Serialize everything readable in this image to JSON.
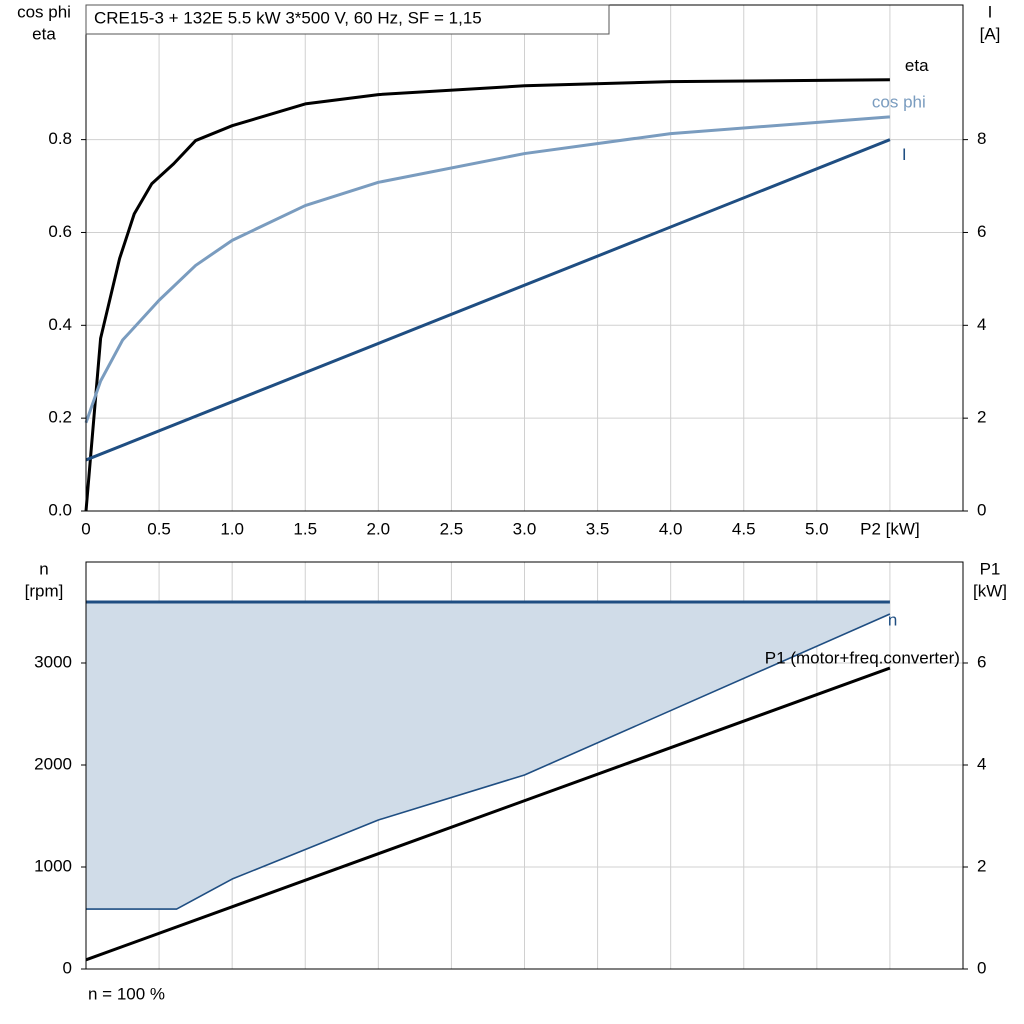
{
  "chart_data": [
    {
      "type": "line",
      "title": "CRE15-3 + 132E   5.5 kW   3*500 V, 60 Hz, SF = 1,15",
      "ylabel": [
        "cos phi",
        "eta"
      ],
      "y2label": [
        "I",
        "[A]"
      ],
      "xlim": [
        0,
        6.0
      ],
      "xticks": [
        {
          "value": 0,
          "label": "0"
        },
        0.5,
        {
          "value": 1,
          "label": "1.0"
        },
        1.5,
        {
          "value": 2,
          "label": "2.0"
        },
        2.5,
        {
          "value": 3,
          "label": "3.0"
        },
        3.5,
        {
          "value": 4,
          "label": "4.0"
        },
        4.5,
        {
          "value": 5,
          "label": "5.0"
        },
        {
          "value": 5.5,
          "label": "P2 [kW]"
        }
      ],
      "ylim": [
        0,
        1.09
      ],
      "yticks": [
        {
          "value": 0,
          "label": "0.0"
        },
        0.2,
        0.4,
        0.6,
        0.8
      ],
      "y2lim": [
        0,
        10.9
      ],
      "y2ticks": [
        0,
        2,
        4,
        6,
        8
      ],
      "grid": true,
      "series": [
        {
          "name": "eta",
          "color": "#000000",
          "x": [
            0,
            0.1,
            0.23,
            0.33,
            0.45,
            0.6,
            0.75,
            1.0,
            1.5,
            2.0,
            3.0,
            4.0,
            5.5
          ],
          "values": [
            0,
            0.372,
            0.544,
            0.64,
            0.705,
            0.748,
            0.798,
            0.83,
            0.877,
            0.897,
            0.916,
            0.925,
            0.929
          ]
        },
        {
          "name": "cos phi",
          "color": "#7a9cbf",
          "x": [
            0,
            0.1,
            0.25,
            0.5,
            0.75,
            1.0,
            1.5,
            2.0,
            3.0,
            4.0,
            5.5
          ],
          "values": [
            0.19,
            0.28,
            0.368,
            0.454,
            0.529,
            0.583,
            0.658,
            0.708,
            0.77,
            0.813,
            0.849
          ]
        },
        {
          "name": "I",
          "color": "#1f4e82",
          "axis": "y2",
          "x": [
            0,
            5.5
          ],
          "values": [
            1.1,
            8.0
          ]
        }
      ]
    },
    {
      "type": "area",
      "ylabel": [
        "n",
        "[rpm]"
      ],
      "y2label": [
        "P1",
        "[kW]"
      ],
      "annotation": "n = 100 %",
      "xlim": [
        0,
        6.0
      ],
      "xgrid": [
        0.5,
        1.0,
        1.5,
        2.0,
        2.5,
        3.0,
        3.5,
        4.0,
        4.5,
        5.0,
        5.5
      ],
      "ylim": [
        0,
        3990
      ],
      "yticks": [
        0,
        1000,
        2000,
        3000
      ],
      "y2lim": [
        0,
        7.98
      ],
      "y2ticks": [
        0,
        2,
        4,
        6
      ],
      "grid": true,
      "series": [
        {
          "name": "n",
          "color": "#1f4e82",
          "fill": "#d0dce8",
          "x": [
            0,
            0.62,
            1.0,
            2.0,
            3.0,
            5.5
          ],
          "upper": [
            3598,
            3598,
            3598,
            3598,
            3598,
            3598
          ],
          "values": [
            588,
            588,
            882,
            1461,
            1902,
            3480
          ]
        },
        {
          "name": "P1 (motor+freq.converter)",
          "color": "#000000",
          "axis": "y2",
          "x": [
            0,
            5.5
          ],
          "values": [
            0.18,
            5.9
          ]
        }
      ]
    }
  ]
}
